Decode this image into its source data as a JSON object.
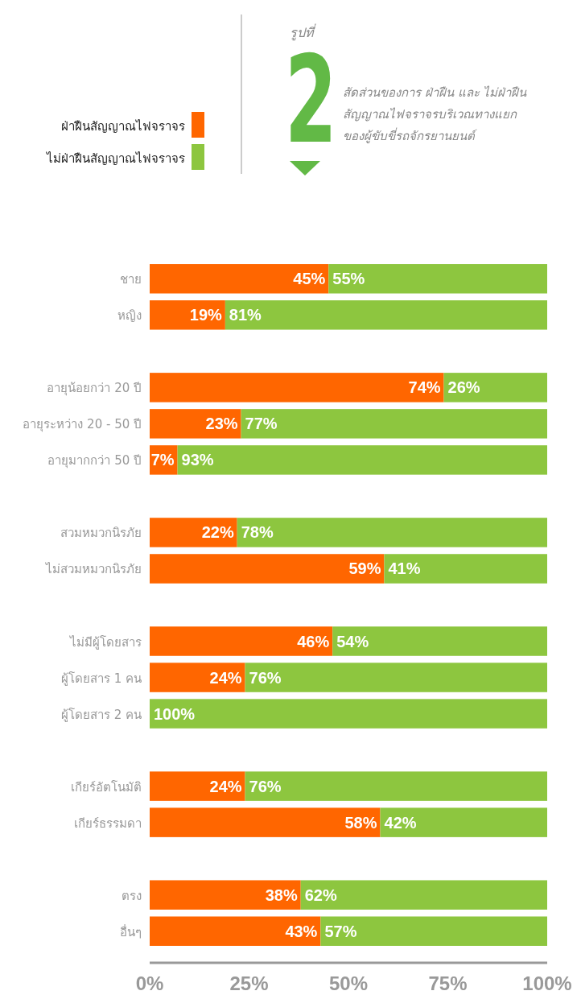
{
  "chart_data": {
    "type": "bar",
    "orientation": "horizontal",
    "stacked": true,
    "title": "สัดส่วนของการ ฝ่าฝืน และ ไม่ฝ่าฝืน\nสัญญาณไฟจราจรบริเวณทางแยก\nของผู้ขับขี่รถจักรยานยนต์",
    "subtitle": "รูปที่",
    "annotations": [
      "2"
    ],
    "categories": [
      "ชาย",
      "หญิง",
      null,
      "อายุน้อยกว่า 20 ปี",
      "อายุระหว่าง 20 - 50 ปี",
      "อายุมากกว่า 50 ปี",
      null,
      "สวมหมวกนิรภัย",
      "ไม่สวมหมวกนิรภัย",
      null,
      "ไม่มีผู้โดยสาร",
      "ผู้โดยสาร 1 คน",
      "ผู้โดยสาร 2 คน",
      null,
      "เกียร์อัตโนมัติ",
      "เกียร์ธรรมดา",
      null,
      "ตรง",
      "อื่นๆ"
    ],
    "series": [
      {
        "name": "ฝ่าฝืนสัญญาณไฟจราจร",
        "color": "#ff6600",
        "values": [
          45,
          19,
          null,
          74,
          23,
          7,
          null,
          22,
          59,
          null,
          46,
          24,
          0,
          null,
          24,
          58,
          null,
          38,
          43
        ],
        "value_labels": [
          "45%",
          "19%",
          null,
          "74%",
          "23%",
          "7%",
          null,
          "22%",
          "59%",
          null,
          "46%",
          "24%",
          null,
          null,
          "24%",
          "58%",
          null,
          "38%",
          "43%"
        ]
      },
      {
        "name": "ไม่ฝ่าฝืนสัญญาณไฟจราจร",
        "color": "#8dc63f",
        "values": [
          55,
          81,
          null,
          26,
          77,
          93,
          null,
          78,
          41,
          null,
          54,
          76,
          100,
          null,
          76,
          42,
          null,
          62,
          57
        ],
        "value_labels": [
          "55%",
          "81%",
          null,
          "26%",
          "77%",
          "93%",
          null,
          "78%",
          "41%",
          null,
          "54%",
          "76%",
          "100%",
          null,
          "76%",
          "42%",
          null,
          "62%",
          "57%"
        ]
      }
    ],
    "xlim": [
      0,
      100
    ],
    "xticks": [
      {
        "value": 0,
        "label": "0%"
      },
      {
        "value": 25,
        "label": "25%"
      },
      {
        "value": 50,
        "label": "50%"
      },
      {
        "value": 75,
        "label": "75%"
      },
      {
        "value": 100,
        "label": "100%"
      }
    ],
    "legend": "top left"
  }
}
